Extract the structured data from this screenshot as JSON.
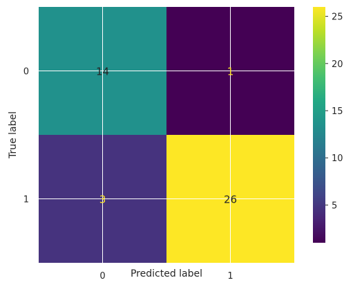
{
  "chart_data": {
    "type": "heatmap",
    "title": "",
    "xlabel": "Predicted label",
    "ylabel": "True label",
    "x_categories": [
      "0",
      "1"
    ],
    "y_categories": [
      "0",
      "1"
    ],
    "values": [
      [
        14,
        1
      ],
      [
        3,
        26
      ]
    ],
    "cell_colors": [
      [
        "#21918c",
        "#440154"
      ],
      [
        "#46337e",
        "#fde725"
      ]
    ],
    "text_colors": [
      [
        "#262626",
        "#fde725"
      ],
      [
        "#fde725",
        "#262626"
      ]
    ],
    "colorbar": {
      "colormap": "viridis",
      "range": [
        1,
        26
      ],
      "ticks": [
        5,
        10,
        15,
        20,
        25
      ]
    },
    "grid": true
  }
}
